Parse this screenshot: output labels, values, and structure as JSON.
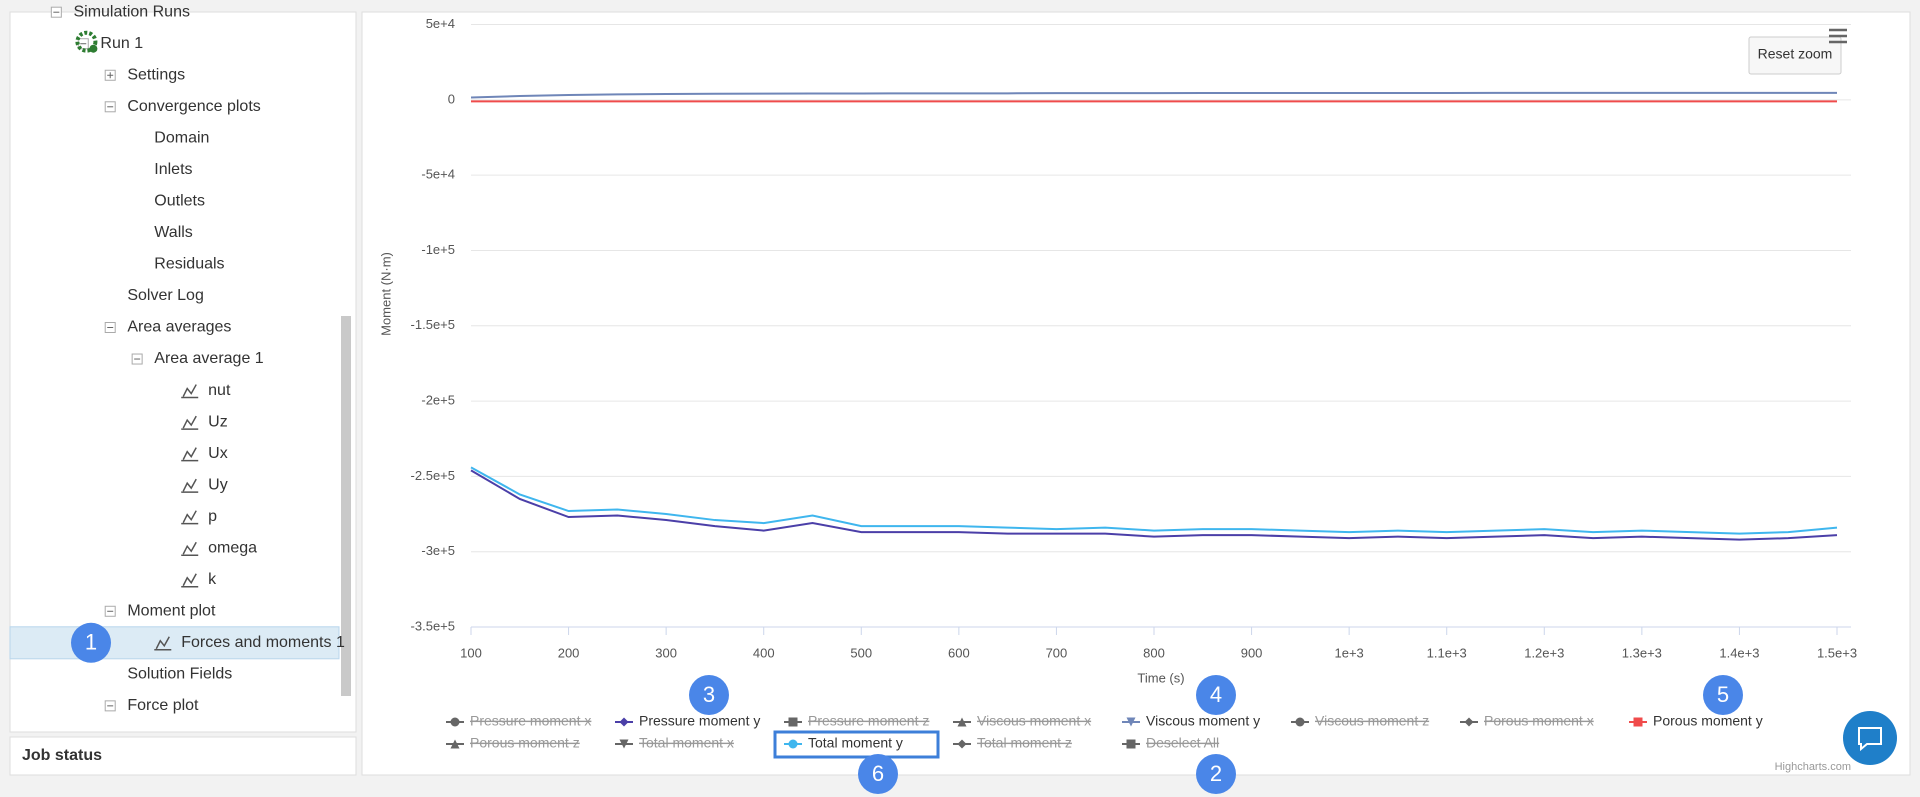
{
  "sidebar": {
    "tree": {
      "label": "Simulation Runs",
      "expanded": true,
      "children": [
        {
          "label": "Run 1",
          "icon": "gear",
          "expanded": true,
          "children": [
            {
              "label": "Settings",
              "expanded": false,
              "children": []
            },
            {
              "label": "Convergence plots",
              "expanded": true,
              "children": [
                {
                  "label": "Domain"
                },
                {
                  "label": "Inlets"
                },
                {
                  "label": "Outlets"
                },
                {
                  "label": "Walls"
                },
                {
                  "label": "Residuals"
                }
              ]
            },
            {
              "label": "Solver Log"
            },
            {
              "label": "Area averages",
              "expanded": true,
              "children": [
                {
                  "label": "Area average 1",
                  "expanded": true,
                  "children": [
                    {
                      "label": "nut",
                      "icon": "chart"
                    },
                    {
                      "label": "Uz",
                      "icon": "chart"
                    },
                    {
                      "label": "Ux",
                      "icon": "chart"
                    },
                    {
                      "label": "Uy",
                      "icon": "chart"
                    },
                    {
                      "label": "p",
                      "icon": "chart"
                    },
                    {
                      "label": "omega",
                      "icon": "chart"
                    },
                    {
                      "label": "k",
                      "icon": "chart"
                    }
                  ]
                }
              ]
            },
            {
              "label": "Moment plot",
              "expanded": true,
              "children": [
                {
                  "label": "Forces and moments 1",
                  "icon": "chart",
                  "selected": true
                }
              ]
            },
            {
              "label": "Solution Fields"
            },
            {
              "label": "Force plot",
              "expanded": true,
              "children": []
            }
          ]
        }
      ]
    },
    "job_status": "Job status"
  },
  "chart_data": {
    "type": "line",
    "x_label": "Time (s)",
    "y_label": "Moment (N·m)",
    "reset_zoom": "Reset zoom",
    "credits": "Highcharts.com",
    "x": [
      100,
      150,
      200,
      250,
      300,
      350,
      400,
      450,
      500,
      550,
      600,
      650,
      700,
      750,
      800,
      850,
      900,
      950,
      1000,
      1050,
      1100,
      1150,
      1200,
      1250,
      1300,
      1350,
      1400,
      1450,
      1500
    ],
    "xlim": [
      100,
      1500
    ],
    "xticks": [
      100,
      200,
      300,
      400,
      500,
      600,
      700,
      800,
      900,
      {
        "value": 1000,
        "label": "1e+3"
      },
      {
        "value": 1100,
        "label": "1.1e+3"
      },
      {
        "value": 1200,
        "label": "1.2e+3"
      },
      {
        "value": 1300,
        "label": "1.3e+3"
      },
      {
        "value": 1400,
        "label": "1.4e+3"
      },
      {
        "value": 1500,
        "label": "1.5e+3"
      }
    ],
    "ylim": [
      -350000,
      50000
    ],
    "yticks": [
      {
        "value": 50000,
        "label": "5e+4"
      },
      0,
      {
        "value": -50000,
        "label": "-5e+4"
      },
      {
        "value": -100000,
        "label": "-1e+5"
      },
      {
        "value": -150000,
        "label": "-1.5e+5"
      },
      {
        "value": -200000,
        "label": "-2e+5"
      },
      {
        "value": -250000,
        "label": "-2.5e+5"
      },
      {
        "value": -300000,
        "label": "-3e+5"
      },
      {
        "value": -350000,
        "label": "-3.5e+5"
      }
    ],
    "grid": true,
    "series": [
      {
        "name": "Pressure moment x",
        "color": "#666666",
        "marker": "circle",
        "visible": false
      },
      {
        "name": "Pressure moment y",
        "color": "#4b3fa8",
        "marker": "diamond",
        "visible": true,
        "values": [
          -246000,
          -265000,
          -277000,
          -276000,
          -279000,
          -283000,
          -286000,
          -281000,
          -287000,
          -287000,
          -287000,
          -288000,
          -288000,
          -288000,
          -290000,
          -289000,
          -289000,
          -290000,
          -291000,
          -290000,
          -291000,
          -290000,
          -289000,
          -291000,
          -290000,
          -291000,
          -292000,
          -291000,
          -289000
        ]
      },
      {
        "name": "Pressure moment z",
        "color": "#666666",
        "marker": "square",
        "visible": false
      },
      {
        "name": "Viscous moment x",
        "color": "#666666",
        "marker": "triangle",
        "visible": false
      },
      {
        "name": "Viscous moment y",
        "color": "#6f86b8",
        "marker": "triangle-down",
        "visible": true,
        "values": [
          1500,
          2500,
          3200,
          3600,
          3900,
          4000,
          4100,
          4200,
          4200,
          4300,
          4300,
          4300,
          4400,
          4400,
          4400,
          4500,
          4500,
          4500,
          4500,
          4500,
          4500,
          4600,
          4600,
          4600,
          4600,
          4600,
          4600,
          4600,
          4600
        ]
      },
      {
        "name": "Viscous moment z",
        "color": "#666666",
        "marker": "circle",
        "visible": false
      },
      {
        "name": "Porous moment x",
        "color": "#666666",
        "marker": "diamond",
        "visible": false
      },
      {
        "name": "Porous moment y",
        "color": "#f04b4b",
        "marker": "square",
        "visible": true,
        "values": [
          -1000,
          -1000,
          -1000,
          -1000,
          -1000,
          -1000,
          -1000,
          -1000,
          -1000,
          -1000,
          -1000,
          -1000,
          -1000,
          -1000,
          -1000,
          -1000,
          -1000,
          -1000,
          -1000,
          -1000,
          -1000,
          -1000,
          -1000,
          -1000,
          -1000,
          -1000,
          -1000,
          -1000,
          -1000
        ]
      },
      {
        "name": "Porous moment z",
        "color": "#666666",
        "marker": "triangle",
        "visible": false
      },
      {
        "name": "Total moment x",
        "color": "#666666",
        "marker": "triangle-down",
        "visible": false
      },
      {
        "name": "Total moment y",
        "color": "#3fb6ee",
        "marker": "circle",
        "visible": true,
        "values": [
          -244000,
          -262000,
          -273000,
          -272000,
          -275000,
          -279000,
          -281000,
          -276000,
          -283000,
          -283000,
          -283000,
          -284000,
          -285000,
          -284000,
          -286000,
          -285000,
          -285000,
          -286000,
          -287000,
          -286000,
          -287000,
          -286000,
          -285000,
          -287000,
          -286000,
          -287000,
          -288000,
          -287000,
          -284000
        ]
      },
      {
        "name": "Total moment z",
        "color": "#666666",
        "marker": "diamond",
        "visible": false
      }
    ],
    "legend_action": {
      "name": "Deselect All",
      "marker": "square"
    }
  },
  "annotations": [
    {
      "label": "1",
      "target": "tree"
    },
    {
      "label": "2",
      "target": "legend_action"
    },
    {
      "label": "3",
      "target": "series.1"
    },
    {
      "label": "4",
      "target": "series.4"
    },
    {
      "label": "5",
      "target": "series.7"
    },
    {
      "label": "6",
      "target": "series.10"
    }
  ]
}
